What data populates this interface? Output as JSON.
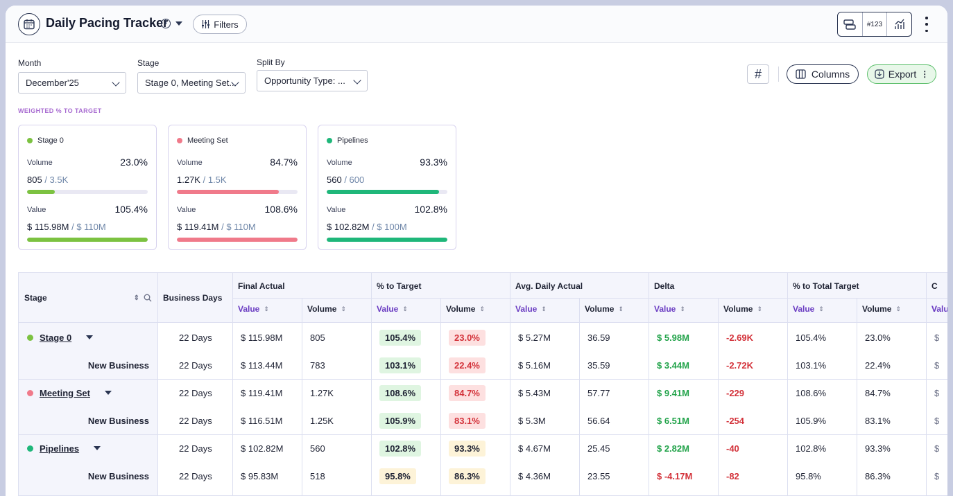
{
  "app": {
    "title": "Daily Pacing Tracker",
    "filters_label": "Filters",
    "view_number_label": "#123"
  },
  "filters": [
    {
      "label": "Month",
      "value": "December'25"
    },
    {
      "label": "Stage",
      "value": "Stage 0, Meeting Set..."
    },
    {
      "label": "Split By",
      "value": "Opportunity Type: ..."
    }
  ],
  "actions": {
    "columns_label": "Columns",
    "export_label": "Export"
  },
  "weighted_label": "WEIGHTED % TO TARGET",
  "cards": [
    {
      "name": "Stage 0",
      "color": "#7cc241",
      "volume_label": "Volume",
      "volume_pct": "23.0%",
      "volume_actual": "805",
      "volume_target": "/ 3.5K",
      "volume_progress": 0.23,
      "value_label": "Value",
      "value_pct": "105.4%",
      "value_actual": "$ 115.98M",
      "value_target": "/ $ 110M",
      "value_progress": 1.0
    },
    {
      "name": "Meeting Set",
      "color": "#f07a8a",
      "volume_label": "Volume",
      "volume_pct": "84.7%",
      "volume_actual": "1.27K",
      "volume_target": "/ 1.5K",
      "volume_progress": 0.847,
      "value_label": "Value",
      "value_pct": "108.6%",
      "value_actual": "$ 119.41M",
      "value_target": "/ $ 110M",
      "value_progress": 1.0
    },
    {
      "name": "Pipelines",
      "color": "#1fb77a",
      "volume_label": "Volume",
      "volume_pct": "93.3%",
      "volume_actual": "560",
      "volume_target": "/ 600",
      "volume_progress": 0.933,
      "value_label": "Value",
      "value_pct": "102.8%",
      "value_actual": "$ 102.82M",
      "value_target": "/ $ 100M",
      "value_progress": 1.0
    }
  ],
  "table": {
    "stage_header": "Stage",
    "days_header": "Business Days",
    "groups": [
      "Final Actual",
      "% to Target",
      "Avg. Daily Actual",
      "Delta",
      "% to Total Target",
      "C"
    ],
    "sub_value": "Value",
    "sub_volume": "Volume",
    "sub_trunc": "V",
    "rows": [
      {
        "name": "Stage 0",
        "color": "#7cc241",
        "days": "22 Days",
        "fa_val": "$ 115.98M",
        "fa_vol": "805",
        "pt_val": "105.4%",
        "pt_vol": "23.0%",
        "ad_val": "$ 5.27M",
        "ad_vol": "36.59",
        "d_val": "$ 5.98M",
        "d_vol": "-2.69K",
        "tt_val": "105.4%",
        "tt_vol": "23.0%",
        "extra": "$"
      },
      {
        "name": "New Business",
        "days": "22 Days",
        "fa_val": "$ 113.44M",
        "fa_vol": "783",
        "pt_val": "103.1%",
        "pt_vol": "22.4%",
        "ad_val": "$ 5.16M",
        "ad_vol": "35.59",
        "d_val": "$ 3.44M",
        "d_vol": "-2.72K",
        "tt_val": "103.1%",
        "tt_vol": "22.4%",
        "extra": "$"
      },
      {
        "name": "Meeting Set",
        "color": "#f07a8a",
        "days": "22 Days",
        "fa_val": "$ 119.41M",
        "fa_vol": "1.27K",
        "pt_val": "108.6%",
        "pt_vol": "84.7%",
        "ad_val": "$ 5.43M",
        "ad_vol": "57.77",
        "d_val": "$ 9.41M",
        "d_vol": "-229",
        "tt_val": "108.6%",
        "tt_vol": "84.7%",
        "extra": "$"
      },
      {
        "name": "New Business",
        "days": "22 Days",
        "fa_val": "$ 116.51M",
        "fa_vol": "1.25K",
        "pt_val": "105.9%",
        "pt_vol": "83.1%",
        "ad_val": "$ 5.3M",
        "ad_vol": "56.64",
        "d_val": "$ 6.51M",
        "d_vol": "-254",
        "tt_val": "105.9%",
        "tt_vol": "83.1%",
        "extra": "$"
      },
      {
        "name": "Pipelines",
        "color": "#1fb77a",
        "days": "22 Days",
        "fa_val": "$ 102.82M",
        "fa_vol": "560",
        "pt_val": "102.8%",
        "pt_vol": "93.3%",
        "ad_val": "$ 4.67M",
        "ad_vol": "25.45",
        "d_val": "$ 2.82M",
        "d_vol": "-40",
        "tt_val": "102.8%",
        "tt_vol": "93.3%",
        "extra": "$"
      },
      {
        "name": "New Business",
        "days": "22 Days",
        "fa_val": "$ 95.83M",
        "fa_vol": "518",
        "pt_val": "95.8%",
        "pt_vol": "86.3%",
        "ad_val": "$ 4.36M",
        "ad_vol": "23.55",
        "d_val": "$ -4.17M",
        "d_vol": "-82",
        "tt_val": "95.8%",
        "tt_vol": "86.3%",
        "extra": "$"
      }
    ]
  }
}
